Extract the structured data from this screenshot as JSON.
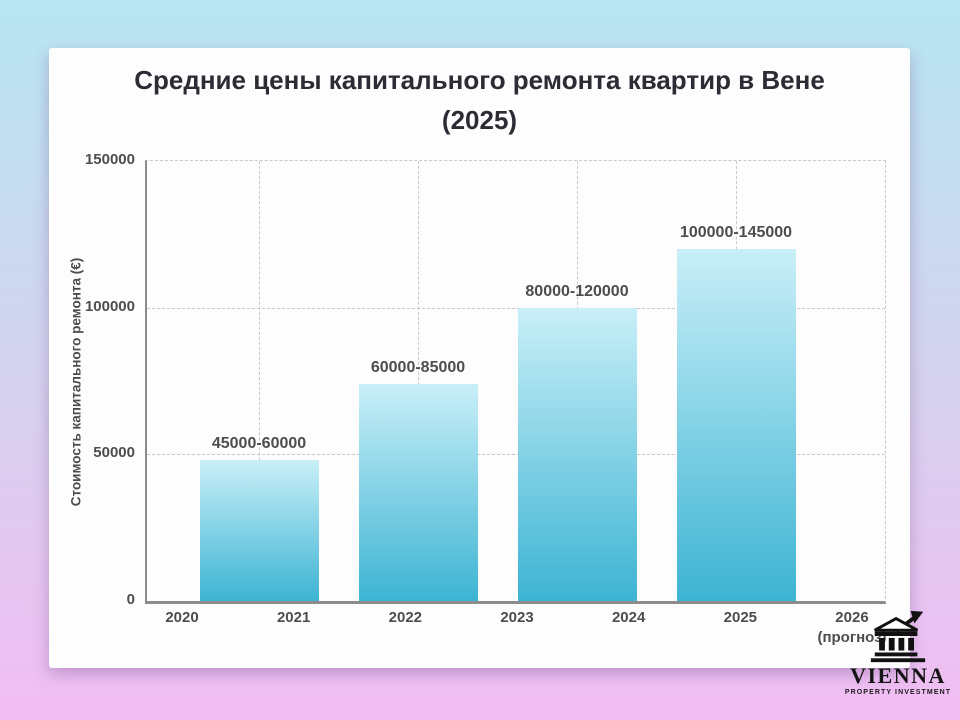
{
  "page": {
    "title_line1": "Средние цены капитального ремонта квартир в Вене",
    "title_line2": "(2025)"
  },
  "chart_data": {
    "type": "bar",
    "title": "Средние цены капитального ремонта квартир в Вене (2025)",
    "ylabel": "Стоимость капитального ремонта (€)",
    "xlabel": "",
    "ylim": [
      0,
      150000
    ],
    "yticks": [
      0,
      50000,
      100000,
      150000
    ],
    "x_ticks": [
      "2020",
      "2021",
      "2022",
      "2023",
      "2024",
      "2025",
      "2026"
    ],
    "x_last_sub": "(прогноз)",
    "grid": true,
    "legend": false,
    "bars": [
      {
        "range_label": "45000-60000",
        "value": 48000
      },
      {
        "range_label": "60000-85000",
        "value": 74000
      },
      {
        "range_label": "80000-120000",
        "value": 100000
      },
      {
        "range_label": "100000-145000",
        "value": 120000
      }
    ],
    "bar_color_top": "#c9eff8",
    "bar_color_bottom": "#3db4d3"
  },
  "logo": {
    "brand": "VIENNA",
    "tagline": "PROPERTY INVESTMENT",
    "icon": "bank-building-with-growth-arrow"
  },
  "colors": {
    "background_top": "#b7e6f3",
    "background_bottom": "#f2bdf3",
    "card": "#fdfdfe",
    "axis": "#8c8c8c",
    "grid": "#c8c8c8",
    "title_text": "#2c2c34",
    "tick_text": "#4d4d4d"
  }
}
